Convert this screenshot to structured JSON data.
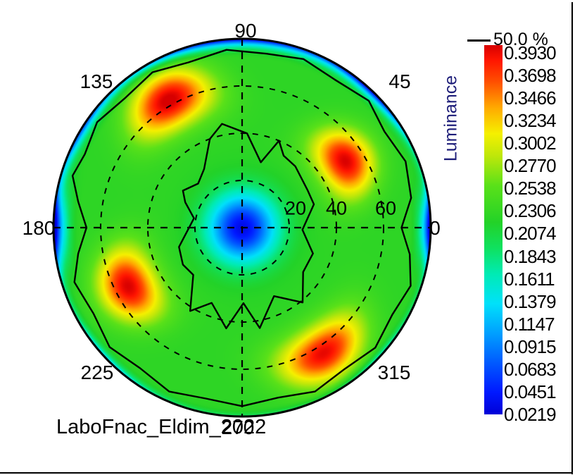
{
  "window": {
    "background": "#ffffff",
    "frame_color": "#000000"
  },
  "caption": {
    "text": "LaboFnac_Eldim_2022"
  },
  "contour_legend": {
    "label": "50.0 %"
  },
  "colorbar": {
    "title": "Luminance",
    "title_color": "#1c1c78",
    "tick_labels": [
      "0.3930",
      "0.3698",
      "0.3466",
      "0.3234",
      "0.3002",
      "0.2770",
      "0.2538",
      "0.2306",
      "0.2074",
      "0.1843",
      "0.1611",
      "0.1379",
      "0.1147",
      "0.0915",
      "0.0683",
      "0.0451",
      "0.0219"
    ]
  },
  "chart_data": {
    "type": "heatmap",
    "projection": "polar",
    "title": "Luminance",
    "value_min": 0.0219,
    "value_max": 0.393,
    "contour_level_percent": 50.0,
    "r_max_deg": 80,
    "grid": {
      "radial_circles_deg": [
        20,
        40,
        60
      ],
      "crosshair": true,
      "style": "dashed"
    },
    "radial_ticks": [
      {
        "label": "20"
      },
      {
        "label": "40"
      },
      {
        "label": "60"
      }
    ],
    "angle_ticks": [
      {
        "deg": 90,
        "label": "90"
      },
      {
        "deg": 135,
        "label": "135"
      },
      {
        "deg": 45,
        "label": "45"
      },
      {
        "deg": 180,
        "label": "180"
      },
      {
        "deg": 0,
        "label": "0"
      },
      {
        "deg": 225,
        "label": "225"
      },
      {
        "deg": 315,
        "label": "315"
      },
      {
        "deg": 270,
        "label": "270"
      }
    ],
    "colormap": [
      [
        0.0,
        "#0000d7"
      ],
      [
        0.06,
        "#0019ff"
      ],
      [
        0.14,
        "#005aff"
      ],
      [
        0.22,
        "#00a0ff"
      ],
      [
        0.3,
        "#00e1fa"
      ],
      [
        0.38,
        "#00ebb4"
      ],
      [
        0.45,
        "#0fe15f"
      ],
      [
        0.52,
        "#23d228"
      ],
      [
        0.62,
        "#5ae119"
      ],
      [
        0.7,
        "#bee70a"
      ],
      [
        0.76,
        "#f5f000"
      ],
      [
        0.83,
        "#ffaa00"
      ],
      [
        0.9,
        "#ff5000"
      ],
      [
        0.96,
        "#ff1400"
      ],
      [
        1.0,
        "#d70000"
      ]
    ],
    "field": {
      "base": 0.222,
      "center_dip": {
        "amplitude": 0.19,
        "sigma_frac": 0.13
      },
      "hot_spots": [
        {
          "theta_deg": 120,
          "r_frac": 0.78,
          "amplitude": 0.175,
          "sigma_tan_frac": 0.16,
          "sigma_rad_frac": 0.105
        },
        {
          "theta_deg": 33,
          "r_frac": 0.65,
          "amplitude": 0.17,
          "sigma_tan_frac": 0.13,
          "sigma_rad_frac": 0.1
        },
        {
          "theta_deg": 207,
          "r_frac": 0.68,
          "amplitude": 0.17,
          "sigma_tan_frac": 0.14,
          "sigma_rad_frac": 0.105
        },
        {
          "theta_deg": 303,
          "r_frac": 0.79,
          "amplitude": 0.165,
          "sigma_tan_frac": 0.17,
          "sigma_rad_frac": 0.1
        }
      ],
      "rim_dips": [
        {
          "theta_deg": 180,
          "amplitude": 0.21,
          "theta_sigma_deg": 8,
          "start_frac": 0.86
        },
        {
          "theta_deg": 0,
          "amplitude": 0.21,
          "theta_sigma_deg": 7,
          "start_frac": 0.88
        },
        {
          "theta_deg": 90,
          "amplitude": 0.16,
          "theta_sigma_deg": 30,
          "start_frac": 0.9
        },
        {
          "theta_deg": 150,
          "amplitude": 0.1,
          "theta_sigma_deg": 10,
          "start_frac": 0.9
        },
        {
          "theta_deg": 45,
          "amplitude": 0.12,
          "theta_sigma_deg": 10,
          "start_frac": 0.91
        },
        {
          "theta_deg": 225,
          "amplitude": 0.06,
          "theta_sigma_deg": 12,
          "start_frac": 0.93
        },
        {
          "theta_deg": 315,
          "amplitude": 0.05,
          "theta_sigma_deg": 10,
          "start_frac": 0.93
        },
        {
          "theta_deg": 270,
          "amplitude": 0.04,
          "theta_sigma_deg": 10000,
          "start_frac": 0.95
        }
      ]
    },
    "contours_50pct": {
      "outer": [
        [
          0,
          0.845
        ],
        [
          10,
          0.91
        ],
        [
          22,
          0.935
        ],
        [
          34,
          0.91
        ],
        [
          45,
          0.95
        ],
        [
          58,
          0.925
        ],
        [
          70,
          0.95
        ],
        [
          82,
          0.93
        ],
        [
          95,
          0.945
        ],
        [
          108,
          0.92
        ],
        [
          120,
          0.95
        ],
        [
          132,
          0.925
        ],
        [
          144,
          0.95
        ],
        [
          155,
          0.92
        ],
        [
          163,
          0.94
        ],
        [
          171,
          0.88
        ],
        [
          180,
          0.825
        ],
        [
          189,
          0.88
        ],
        [
          198,
          0.935
        ],
        [
          210,
          0.91
        ],
        [
          222,
          0.945
        ],
        [
          234,
          0.92
        ],
        [
          246,
          0.95
        ],
        [
          258,
          0.925
        ],
        [
          270,
          0.945
        ],
        [
          282,
          0.92
        ],
        [
          294,
          0.95
        ],
        [
          306,
          0.925
        ],
        [
          318,
          0.95
        ],
        [
          330,
          0.92
        ],
        [
          341,
          0.945
        ],
        [
          351,
          0.9
        ]
      ],
      "inner": [
        [
          123,
          0.37
        ],
        [
          110,
          0.5
        ],
        [
          101,
          0.56
        ],
        [
          87,
          0.5
        ],
        [
          74,
          0.36
        ],
        [
          67,
          0.5
        ],
        [
          60,
          0.44
        ],
        [
          49,
          0.43
        ],
        [
          30,
          0.4
        ],
        [
          18,
          0.4
        ],
        [
          -2,
          0.32
        ],
        [
          -20,
          0.4
        ],
        [
          -36,
          0.4
        ],
        [
          -51,
          0.51
        ],
        [
          -65,
          0.4
        ],
        [
          -80,
          0.54
        ],
        [
          -89,
          0.4
        ],
        [
          -99,
          0.54
        ],
        [
          -112,
          0.43
        ],
        [
          -122,
          0.52
        ],
        [
          -136,
          0.36
        ],
        [
          -148,
          0.37
        ],
        [
          -163,
          0.35
        ],
        [
          169,
          0.26
        ],
        [
          156,
          0.33
        ],
        [
          148,
          0.37
        ],
        [
          135,
          0.33
        ]
      ]
    }
  }
}
